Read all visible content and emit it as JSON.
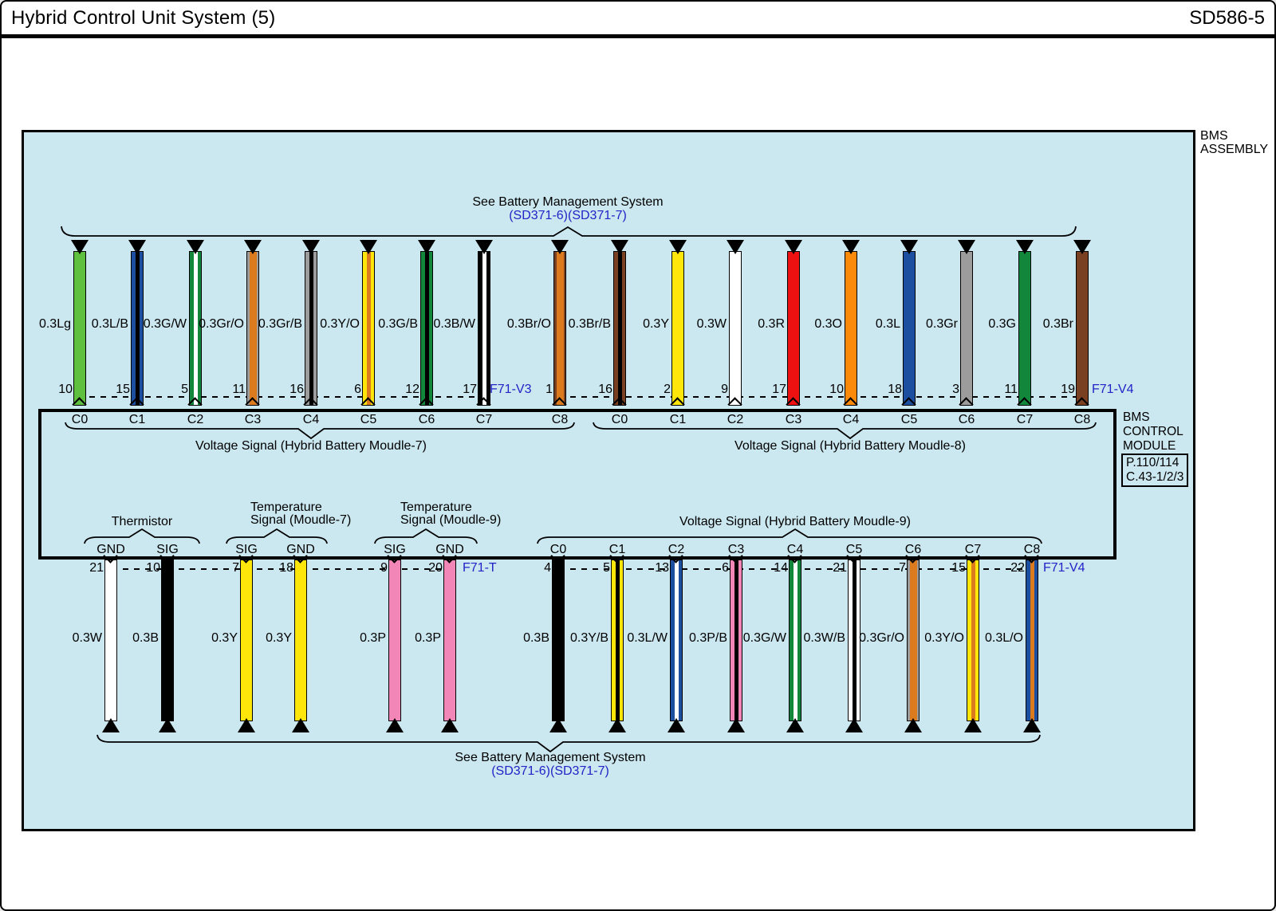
{
  "header": {
    "title": "Hybrid Control Unit System (5)",
    "code": "SD586-5"
  },
  "assembly": {
    "label_line1": "BMS",
    "label_line2": "ASSEMBLY"
  },
  "module": {
    "line1": "BMS",
    "line2": "CONTROL",
    "line3": "MODULE",
    "ref_line1": "P.110/114",
    "ref_line2": "C.43-1/2/3"
  },
  "banners": {
    "top_text": "See Battery Management System",
    "top_refs": "(SD371-6)(SD371-7)",
    "bottom_text": "See Battery Management System",
    "bottom_refs": "(SD371-6)(SD371-7)"
  },
  "connectors": {
    "top_left": "F71-V3",
    "top_right": "F71-V4",
    "bottom_left": "F71-T",
    "bottom_right": "F71-V4"
  },
  "groups": {
    "module7": "Voltage Signal (Hybrid Battery Moudle-7)",
    "module8": "Voltage Signal (Hybrid Battery Moudle-8)",
    "module9": "Voltage Signal (Hybrid Battery Moudle-9)",
    "thermistor": "Thermistor",
    "temp7_line1": "Temperature",
    "temp7_line2": "Signal (Moudle-7)",
    "temp9_line1": "Temperature",
    "temp9_line2": "Signal (Moudle-9)"
  },
  "colors": {
    "diagram_bg": "#CBE7F0",
    "accent_blue": "#2323C6",
    "wire_palette": {
      "Lg": "#5FBF3E",
      "L": "#1C4FA0",
      "G": "#12873B",
      "Gr": "#9C9C9C",
      "Y": "#FFE60A",
      "W": "#FFFFFF",
      "R": "#EE1111",
      "O": "#FB8A0A",
      "Br": "#7A4022",
      "B": "#000000",
      "P": "#F287B7"
    },
    "stripe_palette": {
      "B": "#000000",
      "W": "#FFFFFF",
      "O": "#DC7B1E"
    }
  },
  "top_wires": [
    {
      "pin": "10",
      "label": "0.3Lg",
      "terminal": "C0",
      "body": "Lg",
      "stripe": ""
    },
    {
      "pin": "15",
      "label": "0.3L/B",
      "terminal": "C1",
      "body": "L",
      "stripe": "B"
    },
    {
      "pin": "5",
      "label": "0.3G/W",
      "terminal": "C2",
      "body": "G",
      "stripe": "W"
    },
    {
      "pin": "11",
      "label": "0.3Gr/O",
      "terminal": "C3",
      "body": "Gr",
      "stripe": "O"
    },
    {
      "pin": "16",
      "label": "0.3Gr/B",
      "terminal": "C4",
      "body": "Gr",
      "stripe": "B"
    },
    {
      "pin": "6",
      "label": "0.3Y/O",
      "terminal": "C5",
      "body": "Y",
      "stripe": "O"
    },
    {
      "pin": "12",
      "label": "0.3G/B",
      "terminal": "C6",
      "body": "G",
      "stripe": "B"
    },
    {
      "pin": "17",
      "label": "0.3B/W",
      "terminal": "C7",
      "body": "B",
      "stripe": "W"
    },
    {
      "pin": "1",
      "label": "0.3Br/O",
      "terminal": "C8",
      "body": "Br",
      "stripe": "O"
    },
    {
      "pin": "16",
      "label": "0.3Br/B",
      "terminal": "C0",
      "body": "Br",
      "stripe": "B"
    },
    {
      "pin": "2",
      "label": "0.3Y",
      "terminal": "C1",
      "body": "Y",
      "stripe": ""
    },
    {
      "pin": "9",
      "label": "0.3W",
      "terminal": "C2",
      "body": "W",
      "stripe": ""
    },
    {
      "pin": "17",
      "label": "0.3R",
      "terminal": "C3",
      "body": "R",
      "stripe": ""
    },
    {
      "pin": "10",
      "label": "0.3O",
      "terminal": "C4",
      "body": "O",
      "stripe": ""
    },
    {
      "pin": "18",
      "label": "0.3L",
      "terminal": "C5",
      "body": "L",
      "stripe": ""
    },
    {
      "pin": "3",
      "label": "0.3Gr",
      "terminal": "C6",
      "body": "Gr",
      "stripe": ""
    },
    {
      "pin": "11",
      "label": "0.3G",
      "terminal": "C7",
      "body": "G",
      "stripe": ""
    },
    {
      "pin": "19",
      "label": "0.3Br",
      "terminal": "C8",
      "body": "Br",
      "stripe": ""
    }
  ],
  "bottom_left_wires": [
    {
      "pin": "21",
      "label": "0.3W",
      "terminal": "GND",
      "body": "W",
      "stripe": ""
    },
    {
      "pin": "10",
      "label": "0.3B",
      "terminal": "SIG",
      "body": "B",
      "stripe": ""
    },
    {
      "pin": "7",
      "label": "0.3Y",
      "terminal": "SIG",
      "body": "Y",
      "stripe": ""
    },
    {
      "pin": "18",
      "label": "0.3Y",
      "terminal": "GND",
      "body": "Y",
      "stripe": ""
    },
    {
      "pin": "9",
      "label": "0.3P",
      "terminal": "SIG",
      "body": "P",
      "stripe": ""
    },
    {
      "pin": "20",
      "label": "0.3P",
      "terminal": "GND",
      "body": "P",
      "stripe": ""
    }
  ],
  "bottom_right_wires": [
    {
      "pin": "4",
      "label": "0.3B",
      "terminal": "C0",
      "body": "B",
      "stripe": ""
    },
    {
      "pin": "5",
      "label": "0.3Y/B",
      "terminal": "C1",
      "body": "Y",
      "stripe": "B"
    },
    {
      "pin": "13",
      "label": "0.3L/W",
      "terminal": "C2",
      "body": "L",
      "stripe": "W"
    },
    {
      "pin": "6",
      "label": "0.3P/B",
      "terminal": "C3",
      "body": "P",
      "stripe": "B"
    },
    {
      "pin": "14",
      "label": "0.3G/W",
      "terminal": "C4",
      "body": "G",
      "stripe": "W"
    },
    {
      "pin": "21",
      "label": "0.3W/B",
      "terminal": "C5",
      "body": "W",
      "stripe": "B"
    },
    {
      "pin": "7",
      "label": "0.3Gr/O",
      "terminal": "C6",
      "body": "Gr",
      "stripe": "O"
    },
    {
      "pin": "15",
      "label": "0.3Y/O",
      "terminal": "C7",
      "body": "Y",
      "stripe": "O"
    },
    {
      "pin": "22",
      "label": "0.3L/O",
      "terminal": "C8",
      "body": "L",
      "stripe": "O"
    }
  ]
}
